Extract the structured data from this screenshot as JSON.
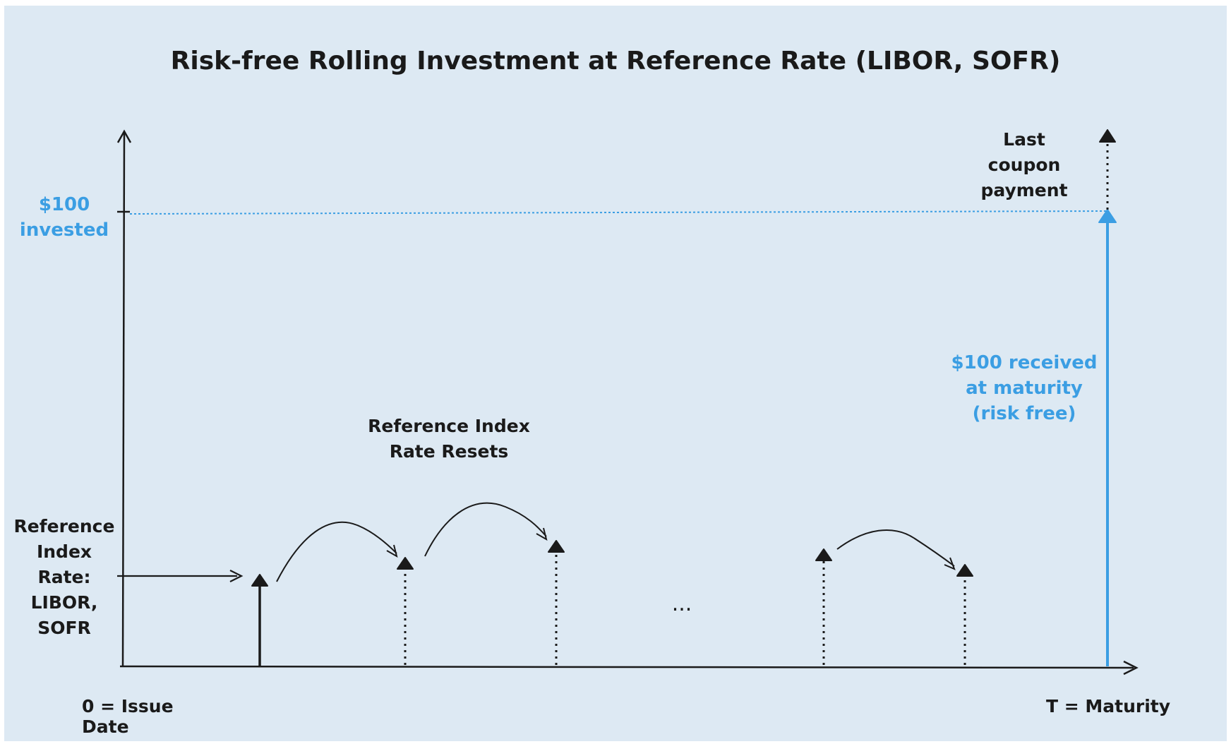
{
  "diagram": {
    "title": "Risk-free Rolling Investment at Reference Rate (LIBOR, SOFR)",
    "labels": {
      "invested": "$100\ninvested",
      "last_coupon": "Last\ncoupon\npayment",
      "received": "$100 received\nat maturity\n(risk free)",
      "resets": "Reference Index\nRate Resets",
      "reference_index": "Reference\nIndex\nRate:\nLIBOR,\nSOFR",
      "issue_date": "0 = Issue Date",
      "maturity": "T = Maturity",
      "ellipsis": "..."
    },
    "colors": {
      "ink": "#1a1a1a",
      "accent": "#3b9ee3",
      "background": "#dde9f3"
    }
  }
}
